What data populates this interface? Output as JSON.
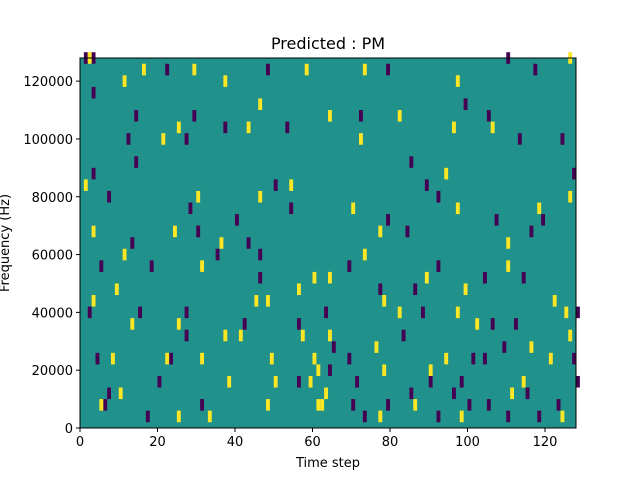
{
  "chart_data": {
    "type": "heatmap",
    "title": "Predicted : PM",
    "xlabel": "Time step",
    "ylabel": "Frequency (Hz)",
    "xlim": [
      0,
      128
    ],
    "ylim": [
      0,
      128000
    ],
    "xticks": [
      0,
      20,
      40,
      60,
      80,
      100,
      120
    ],
    "yticks": [
      0,
      20000,
      40000,
      60000,
      80000,
      100000,
      120000
    ],
    "xtick_labels": [
      "0",
      "20",
      "40",
      "60",
      "80",
      "100",
      "120"
    ],
    "ytick_labels": [
      "0",
      "20000",
      "40000",
      "60000",
      "80000",
      "100000",
      "120000"
    ],
    "grid": false,
    "colors": {
      "background": "#21918c",
      "low": "#440154",
      "high": "#fde725"
    },
    "bin_width_hz": 4000,
    "low_cells": [
      [
        1,
        126000
      ],
      [
        3,
        126000
      ],
      [
        22,
        122000
      ],
      [
        48,
        122000
      ],
      [
        79,
        122000
      ],
      [
        117,
        122000
      ],
      [
        110,
        126000
      ],
      [
        3,
        114000
      ],
      [
        14,
        106000
      ],
      [
        29,
        106000
      ],
      [
        72,
        106000
      ],
      [
        99,
        110000
      ],
      [
        12,
        98000
      ],
      [
        27,
        98000
      ],
      [
        14,
        90000
      ],
      [
        53,
        102000
      ],
      [
        37,
        102000
      ],
      [
        105,
        106000
      ],
      [
        113,
        98000
      ],
      [
        124,
        98000
      ],
      [
        85,
        90000
      ],
      [
        127,
        86000
      ],
      [
        3,
        86000
      ],
      [
        50,
        82000
      ],
      [
        89,
        82000
      ],
      [
        7,
        78000
      ],
      [
        28,
        74000
      ],
      [
        40,
        70000
      ],
      [
        54,
        74000
      ],
      [
        79,
        70000
      ],
      [
        92,
        78000
      ],
      [
        107,
        70000
      ],
      [
        119,
        70000
      ],
      [
        30,
        66000
      ],
      [
        43,
        62000
      ],
      [
        13,
        62000
      ],
      [
        35,
        58000
      ],
      [
        46,
        58000
      ],
      [
        84,
        66000
      ],
      [
        116,
        66000
      ],
      [
        5,
        54000
      ],
      [
        18,
        54000
      ],
      [
        46,
        50000
      ],
      [
        69,
        54000
      ],
      [
        92,
        54000
      ],
      [
        77,
        46000
      ],
      [
        86,
        46000
      ],
      [
        104,
        50000
      ],
      [
        114,
        50000
      ],
      [
        2,
        38000
      ],
      [
        15,
        38000
      ],
      [
        27,
        38000
      ],
      [
        42,
        34000
      ],
      [
        56,
        34000
      ],
      [
        63,
        38000
      ],
      [
        88,
        38000
      ],
      [
        106,
        34000
      ],
      [
        112,
        34000
      ],
      [
        128,
        38000
      ],
      [
        4,
        22000
      ],
      [
        23,
        22000
      ],
      [
        65,
        26000
      ],
      [
        69,
        22000
      ],
      [
        104,
        22000
      ],
      [
        109,
        26000
      ],
      [
        127,
        22000
      ],
      [
        128,
        14000
      ],
      [
        20,
        14000
      ],
      [
        56,
        14000
      ],
      [
        71,
        14000
      ],
      [
        85,
        10000
      ],
      [
        90,
        14000
      ],
      [
        98,
        14000
      ],
      [
        115,
        10000
      ],
      [
        6,
        6000
      ],
      [
        7,
        10000
      ],
      [
        17,
        2000
      ],
      [
        31,
        6000
      ],
      [
        70,
        6000
      ],
      [
        73,
        2000
      ],
      [
        79,
        6000
      ],
      [
        92,
        2000
      ],
      [
        100,
        6000
      ],
      [
        105,
        6000
      ],
      [
        110,
        2000
      ],
      [
        118,
        2000
      ],
      [
        123,
        6000
      ],
      [
        64,
        18000
      ],
      [
        96,
        10000
      ],
      [
        27,
        30000
      ],
      [
        83,
        30000
      ],
      [
        101,
        22000
      ]
    ],
    "high_cells": [
      [
        2,
        126000
      ],
      [
        16,
        122000
      ],
      [
        29,
        122000
      ],
      [
        58,
        122000
      ],
      [
        73,
        122000
      ],
      [
        97,
        118000
      ],
      [
        126,
        126000
      ],
      [
        11,
        118000
      ],
      [
        37,
        118000
      ],
      [
        46,
        110000
      ],
      [
        64,
        106000
      ],
      [
        82,
        106000
      ],
      [
        25,
        102000
      ],
      [
        43,
        102000
      ],
      [
        96,
        102000
      ],
      [
        106,
        102000
      ],
      [
        21,
        98000
      ],
      [
        72,
        98000
      ],
      [
        94,
        86000
      ],
      [
        1,
        82000
      ],
      [
        54,
        82000
      ],
      [
        30,
        78000
      ],
      [
        46,
        78000
      ],
      [
        70,
        74000
      ],
      [
        97,
        74000
      ],
      [
        118,
        74000
      ],
      [
        126,
        78000
      ],
      [
        3,
        66000
      ],
      [
        24,
        66000
      ],
      [
        36,
        62000
      ],
      [
        77,
        66000
      ],
      [
        110,
        62000
      ],
      [
        11,
        58000
      ],
      [
        73,
        58000
      ],
      [
        31,
        54000
      ],
      [
        60,
        50000
      ],
      [
        64,
        50000
      ],
      [
        89,
        50000
      ],
      [
        99,
        46000
      ],
      [
        110,
        54000
      ],
      [
        3,
        42000
      ],
      [
        9,
        46000
      ],
      [
        45,
        42000
      ],
      [
        48,
        42000
      ],
      [
        56,
        46000
      ],
      [
        78,
        42000
      ],
      [
        82,
        38000
      ],
      [
        97,
        38000
      ],
      [
        122,
        42000
      ],
      [
        125,
        38000
      ],
      [
        13,
        34000
      ],
      [
        25,
        34000
      ],
      [
        37,
        30000
      ],
      [
        57,
        30000
      ],
      [
        64,
        30000
      ],
      [
        76,
        26000
      ],
      [
        94,
        22000
      ],
      [
        116,
        26000
      ],
      [
        8,
        22000
      ],
      [
        22,
        22000
      ],
      [
        31,
        22000
      ],
      [
        49,
        22000
      ],
      [
        60,
        22000
      ],
      [
        61,
        18000
      ],
      [
        63,
        10000
      ],
      [
        61,
        6000
      ],
      [
        62,
        6000
      ],
      [
        38,
        14000
      ],
      [
        50,
        14000
      ],
      [
        78,
        18000
      ],
      [
        90,
        18000
      ],
      [
        114,
        14000
      ],
      [
        5,
        6000
      ],
      [
        10,
        10000
      ],
      [
        25,
        2000
      ],
      [
        33,
        2000
      ],
      [
        48,
        6000
      ],
      [
        59,
        14000
      ],
      [
        77,
        2000
      ],
      [
        86,
        6000
      ],
      [
        98,
        2000
      ],
      [
        111,
        10000
      ],
      [
        124,
        2000
      ],
      [
        41,
        30000
      ],
      [
        126,
        30000
      ],
      [
        102,
        34000
      ],
      [
        121,
        22000
      ]
    ]
  }
}
